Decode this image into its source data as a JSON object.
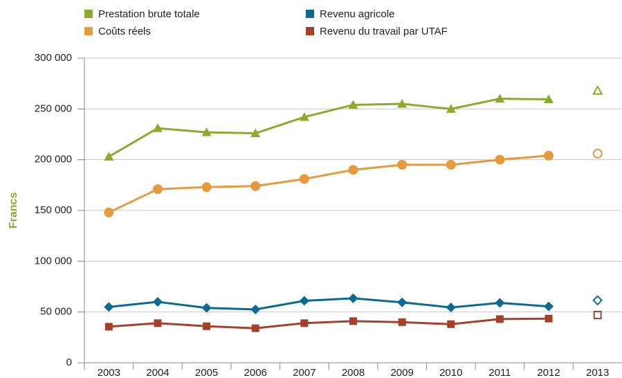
{
  "chart_data": {
    "type": "line",
    "y_label": "Francs",
    "categories": [
      "2003",
      "2004",
      "2005",
      "2006",
      "2007",
      "2008",
      "2009",
      "2010",
      "2011",
      "2012",
      "2013"
    ],
    "estimated": [
      false,
      false,
      false,
      false,
      false,
      false,
      false,
      false,
      false,
      false,
      true
    ],
    "series": [
      {
        "name": "Prestation brute totale",
        "color": "#8aab2c",
        "marker": "triangle",
        "values": [
          203000,
          231000,
          227000,
          226000,
          242000,
          254000,
          255000,
          250000,
          260000,
          259500,
          268000
        ]
      },
      {
        "name": "Revenu agricole",
        "color": "#0a6a93",
        "marker": "diamond",
        "values": [
          55000,
          60000,
          54000,
          52500,
          61000,
          63500,
          59500,
          54500,
          59000,
          55500,
          61500
        ]
      },
      {
        "name": "Coûts réels",
        "color": "#e59a3b",
        "marker": "circle",
        "values": [
          148000,
          171000,
          173000,
          174000,
          181000,
          190000,
          195000,
          195000,
          200000,
          204000,
          206000
        ]
      },
      {
        "name": "Revenu du travail par UTAF",
        "color": "#a6402a",
        "marker": "square",
        "values": [
          35500,
          39000,
          36000,
          34000,
          39000,
          41000,
          40000,
          38000,
          43000,
          43500,
          47000
        ]
      }
    ],
    "ylim": [
      0,
      300000
    ],
    "yticks": [
      {
        "value": 0,
        "label": "0"
      },
      {
        "value": 50000,
        "label": "50 000"
      },
      {
        "value": 100000,
        "label": "100 000"
      },
      {
        "value": 150000,
        "label": "150 000"
      },
      {
        "value": 200000,
        "label": "200 000"
      },
      {
        "value": 250000,
        "label": "250 000"
      },
      {
        "value": 300000,
        "label": "300 000"
      }
    ],
    "grid": true
  }
}
